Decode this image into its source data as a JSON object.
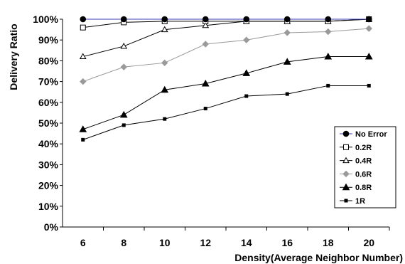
{
  "chart_data": {
    "type": "line",
    "title": "",
    "xlabel": "Density(Average Neighbor Number)",
    "ylabel": "Delivery Ratio",
    "x": [
      6,
      8,
      10,
      12,
      14,
      16,
      18,
      20
    ],
    "ylim": [
      0,
      100
    ],
    "y_ticks": [
      "0%",
      "10%",
      "20%",
      "30%",
      "40%",
      "50%",
      "60%",
      "70%",
      "80%",
      "90%",
      "100%"
    ],
    "grid": false,
    "legend_position": "bottom-right",
    "series": [
      {
        "name": "No Error",
        "marker": "filled-circle",
        "color": "#000000",
        "line_color": "#3b3bb3",
        "values": [
          100,
          100,
          100,
          100,
          100,
          100,
          100,
          100
        ]
      },
      {
        "name": "0.2R",
        "marker": "open-square",
        "color": "#000000",
        "line_color": "#000000",
        "values": [
          96,
          98.5,
          99,
          99,
          99,
          99,
          99,
          100
        ]
      },
      {
        "name": "0.4R",
        "marker": "open-triangle",
        "color": "#000000",
        "line_color": "#000000",
        "values": [
          82,
          87,
          95,
          97,
          99,
          99,
          99,
          100
        ]
      },
      {
        "name": "0.6R",
        "marker": "diamond",
        "color": "#9a9a9a",
        "line_color": "#9a9a9a",
        "values": [
          70,
          77,
          79,
          88,
          90,
          93.5,
          94,
          95.5
        ]
      },
      {
        "name": "0.8R",
        "marker": "filled-triangle",
        "color": "#000000",
        "line_color": "#000000",
        "values": [
          47,
          54,
          66,
          69,
          74,
          79.5,
          82,
          82
        ]
      },
      {
        "name": "1R",
        "marker": "small-square",
        "color": "#000000",
        "line_color": "#000000",
        "values": [
          42,
          49,
          52,
          57,
          63,
          64,
          68,
          68
        ]
      }
    ]
  }
}
